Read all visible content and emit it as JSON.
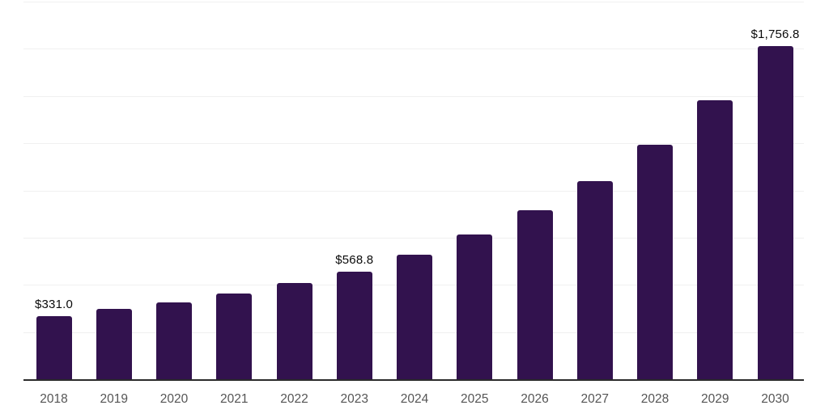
{
  "chart_data": {
    "type": "bar",
    "title": "",
    "xlabel": "",
    "ylabel": "",
    "categories": [
      "2018",
      "2019",
      "2020",
      "2021",
      "2022",
      "2023",
      "2024",
      "2025",
      "2026",
      "2027",
      "2028",
      "2029",
      "2030"
    ],
    "values": [
      331.0,
      370,
      405,
      451,
      508,
      568.8,
      656,
      764,
      891,
      1046,
      1235,
      1470,
      1756.8
    ],
    "value_labels": [
      "$331.0",
      "",
      "",
      "",
      "",
      "$568.8",
      "",
      "",
      "",
      "",
      "",
      "",
      "$1,756.8"
    ],
    "ylim": [
      0,
      1990
    ],
    "grid": "horizontal",
    "legend": "none",
    "colors": {
      "bar": "#32124e",
      "axis_line": "#2b2b2b",
      "tick_label": "#555555",
      "value_label": "#0a0a0a",
      "gridline": "#f0f0f0",
      "background": "#ffffff"
    }
  }
}
